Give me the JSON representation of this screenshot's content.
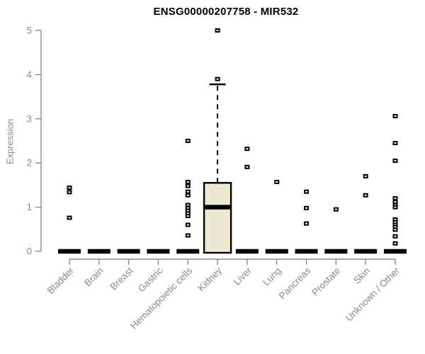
{
  "chart_data": {
    "type": "boxplot",
    "title": "ENSG00000207758 - MIR532",
    "xlabel": "",
    "ylabel": "Expression",
    "ylim": [
      0,
      5
    ],
    "yticks": [
      0,
      1,
      2,
      3,
      4,
      5
    ],
    "grid": false,
    "legend": "none",
    "categories": [
      "Bladder",
      "Brain",
      "Breast",
      "Gastric",
      "Hematopoietic cells",
      "Kidney",
      "Liver",
      "Lung",
      "Pancreas",
      "Prostate",
      "Skin",
      "Unknown / Other"
    ],
    "series": [
      {
        "name": "Bladder",
        "q1": 0,
        "median": 0,
        "q3": 0,
        "whisker_low": 0,
        "whisker_high": 0,
        "outliers": [
          1.44,
          1.34,
          0.76
        ]
      },
      {
        "name": "Brain",
        "q1": 0,
        "median": 0,
        "q3": 0,
        "whisker_low": 0,
        "whisker_high": 0,
        "outliers": []
      },
      {
        "name": "Breast",
        "q1": 0,
        "median": 0,
        "q3": 0,
        "whisker_low": 0,
        "whisker_high": 0,
        "outliers": []
      },
      {
        "name": "Gastric",
        "q1": 0,
        "median": 0,
        "q3": 0,
        "whisker_low": 0,
        "whisker_high": 0,
        "outliers": []
      },
      {
        "name": "Hematopoietic cells",
        "q1": 0,
        "median": 0,
        "q3": 0,
        "whisker_low": 0,
        "whisker_high": 0,
        "outliers": [
          2.5,
          1.57,
          1.48,
          1.35,
          1.27,
          1.05,
          0.98,
          0.92,
          0.86,
          0.8,
          0.6,
          0.36
        ]
      },
      {
        "name": "Kidney",
        "q1": 0,
        "median": 1.0,
        "q3": 1.55,
        "whisker_low": 0,
        "whisker_high": 3.78,
        "outliers": [
          3.9,
          5.0
        ]
      },
      {
        "name": "Liver",
        "q1": 0,
        "median": 0,
        "q3": 0,
        "whisker_low": 0,
        "whisker_high": 0,
        "outliers": [
          2.32,
          1.91
        ]
      },
      {
        "name": "Lung",
        "q1": 0,
        "median": 0,
        "q3": 0,
        "whisker_low": 0,
        "whisker_high": 0,
        "outliers": [
          1.57
        ]
      },
      {
        "name": "Pancreas",
        "q1": 0,
        "median": 0,
        "q3": 0,
        "whisker_low": 0,
        "whisker_high": 0,
        "outliers": [
          1.35,
          0.98,
          0.63
        ]
      },
      {
        "name": "Prostate",
        "q1": 0,
        "median": 0,
        "q3": 0,
        "whisker_low": 0,
        "whisker_high": 0,
        "outliers": [
          0.95
        ]
      },
      {
        "name": "Skin",
        "q1": 0,
        "median": 0,
        "q3": 0,
        "whisker_low": 0,
        "whisker_high": 0,
        "outliers": [
          1.7,
          1.27
        ]
      },
      {
        "name": "Unknown / Other",
        "q1": 0,
        "median": 0,
        "q3": 0,
        "whisker_low": 0,
        "whisker_high": 0,
        "outliers": [
          3.06,
          2.45,
          2.05,
          1.2,
          1.12,
          1.05,
          1.0,
          0.72,
          0.66,
          0.6,
          0.55,
          0.49,
          0.34,
          0.18
        ]
      }
    ],
    "colors": {
      "background": "#FFFFFF",
      "axis": "#8A8A8A",
      "tick_text": "#8A8A8A",
      "title_text": "#000000",
      "box_fill": "#EDE8D1",
      "box_border": "#000000",
      "marker": "#000000",
      "marker_center": "#FFFFFF"
    }
  }
}
